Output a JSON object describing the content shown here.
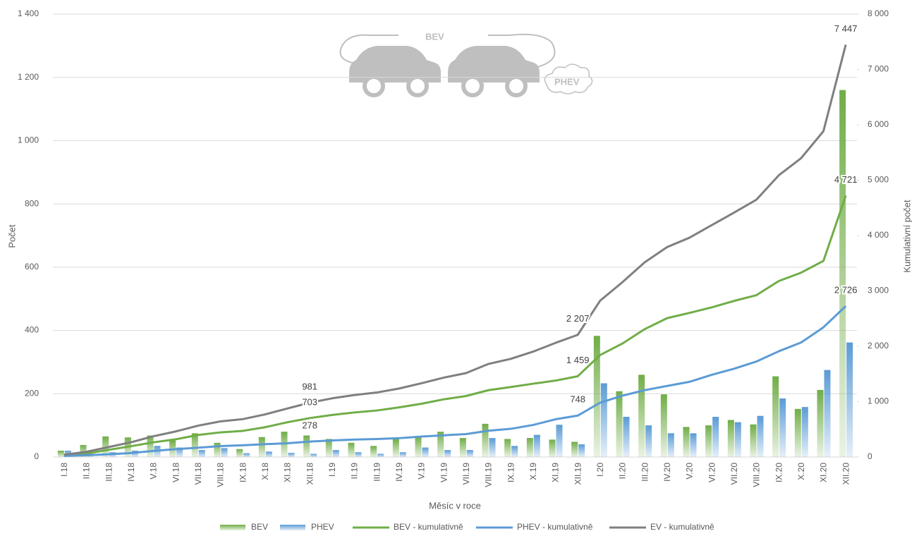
{
  "chart_data": {
    "type": "bar",
    "ylabel": "Počet",
    "y2label": "Kumulativní počet",
    "xlabel": "Měsíc v roce",
    "annotations": [
      "BEV",
      "PHEV"
    ],
    "categories": [
      "I.18",
      "II.18",
      "III.18",
      "IV.18",
      "V.18",
      "VI.18",
      "VII.18",
      "VIII.18",
      "IX.18",
      "X.18",
      "XI.18",
      "XII.18",
      "I.19",
      "II.19",
      "III.19",
      "IV.19",
      "V.19",
      "VI.19",
      "VII.19",
      "VIII.19",
      "IX.19",
      "X.19",
      "XI.19",
      "XII.19",
      "I.20",
      "II.20",
      "III.20",
      "IV.20",
      "V.20",
      "VI.20",
      "VII.20",
      "VIII.20",
      "IX.20",
      "X.20",
      "XI.20",
      "XII.20"
    ],
    "ylim": [
      0,
      1400
    ],
    "yticks": [
      0,
      200,
      400,
      600,
      800,
      {
        "value": 1000,
        "label": "1 000"
      },
      {
        "value": 1200,
        "label": "1 200"
      },
      {
        "value": 1400,
        "label": "1 400"
      }
    ],
    "y2lim": [
      0,
      8000
    ],
    "y2ticks": [
      0,
      {
        "value": 1000,
        "label": "1 000"
      },
      {
        "value": 2000,
        "label": "2 000"
      },
      {
        "value": 3000,
        "label": "3 000"
      },
      {
        "value": 4000,
        "label": "4 000"
      },
      {
        "value": 5000,
        "label": "5 000"
      },
      {
        "value": 6000,
        "label": "6 000"
      },
      {
        "value": 7000,
        "label": "7 000"
      },
      {
        "value": 8000,
        "label": "8 000"
      }
    ],
    "grid": true,
    "legend": "bottom",
    "series": [
      {
        "name": "BEV",
        "type": "bar",
        "color": "#70ad47",
        "values": [
          20,
          38,
          65,
          62,
          68,
          52,
          75,
          45,
          25,
          63,
          80,
          68,
          57,
          45,
          35,
          57,
          65,
          80,
          60,
          105,
          57,
          60,
          55,
          48,
          383,
          208,
          260,
          198,
          95,
          100,
          117,
          103,
          255,
          152,
          212,
          1160
        ]
      },
      {
        "name": "PHEV",
        "type": "bar",
        "color": "#5b9bd5",
        "values": [
          20,
          10,
          15,
          20,
          35,
          30,
          22,
          28,
          12,
          17,
          13,
          10,
          22,
          15,
          10,
          15,
          30,
          22,
          22,
          60,
          35,
          70,
          102,
          40,
          233,
          127,
          100,
          75,
          75,
          127,
          110,
          130,
          185,
          158,
          275,
          362
        ]
      },
      {
        "name": "BEV - kumulativně",
        "type": "line",
        "axis": "y2",
        "color": "#70ad47",
        "values": [
          22,
          62,
          130,
          195,
          265,
          320,
          398,
          445,
          472,
          538,
          628,
          703,
          760,
          805,
          840,
          897,
          962,
          1042,
          1102,
          1207,
          1264,
          1324,
          1380,
          1459,
          1842,
          2050,
          2310,
          2508,
          2603,
          2703,
          2820,
          2923,
          3178,
          3330,
          3542,
          4721
        ],
        "value_labels": [
          null,
          null,
          null,
          null,
          null,
          null,
          null,
          null,
          null,
          null,
          null,
          "703",
          null,
          null,
          null,
          null,
          null,
          null,
          null,
          null,
          null,
          null,
          null,
          "1 459",
          null,
          null,
          null,
          null,
          null,
          null,
          null,
          null,
          null,
          null,
          null,
          "4 721"
        ]
      },
      {
        "name": "PHEV - kumulativně",
        "type": "line",
        "axis": "y2",
        "color": "#5b9bd5",
        "values": [
          20,
          32,
          50,
          72,
          110,
          142,
          168,
          198,
          212,
          232,
          248,
          278,
          300,
          315,
          325,
          340,
          370,
          392,
          414,
          474,
          509,
          579,
          681,
          748,
          981,
          1108,
          1208,
          1283,
          1358,
          1485,
          1595,
          1725,
          1910,
          2068,
          2343,
          2726
        ],
        "value_labels": [
          null,
          null,
          null,
          null,
          null,
          null,
          null,
          null,
          null,
          null,
          null,
          "278",
          null,
          null,
          null,
          null,
          null,
          null,
          null,
          null,
          null,
          null,
          null,
          "748",
          null,
          null,
          null,
          null,
          null,
          null,
          null,
          null,
          null,
          null,
          null,
          "2 726"
        ]
      },
      {
        "name": "EV - kumulativně",
        "type": "line",
        "axis": "y2",
        "color": "#7f7f7f",
        "values": [
          42,
          94,
          180,
          267,
          375,
          462,
          566,
          643,
          684,
          770,
          876,
          981,
          1060,
          1120,
          1165,
          1237,
          1332,
          1434,
          1516,
          1681,
          1773,
          1903,
          2061,
          2207,
          2823,
          3158,
          3518,
          3791,
          3961,
          4188,
          4415,
          4648,
          5088,
          5398,
          5885,
          7447
        ],
        "value_labels": [
          null,
          null,
          null,
          null,
          null,
          null,
          null,
          null,
          null,
          null,
          null,
          "981",
          null,
          null,
          null,
          null,
          null,
          null,
          null,
          null,
          null,
          null,
          null,
          "2 207",
          null,
          null,
          null,
          null,
          null,
          null,
          null,
          null,
          null,
          null,
          null,
          "7 447"
        ]
      }
    ]
  }
}
